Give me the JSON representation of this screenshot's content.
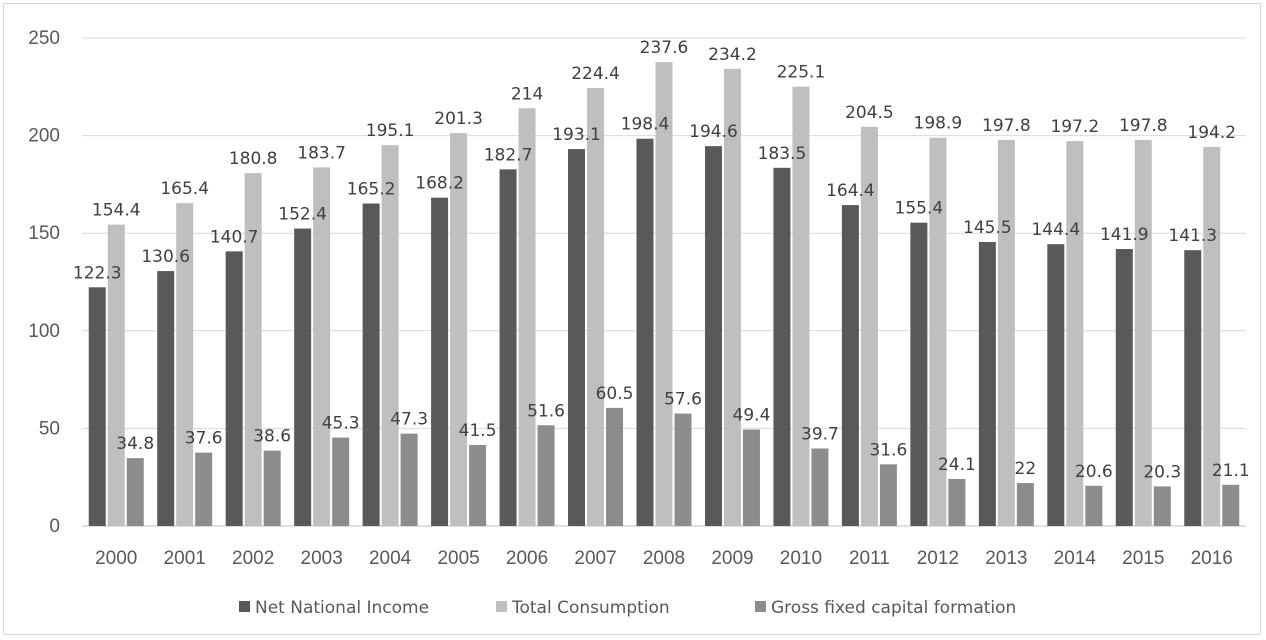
{
  "chart_data": {
    "type": "bar",
    "categories": [
      "2000",
      "2001",
      "2002",
      "2003",
      "2004",
      "2005",
      "2006",
      "2007",
      "2008",
      "2009",
      "2010",
      "2011",
      "2012",
      "2013",
      "2014",
      "2015",
      "2016"
    ],
    "series": [
      {
        "name": "Net National Income",
        "color": "#595959",
        "values": [
          122.3,
          130.6,
          140.7,
          152.4,
          165.2,
          168.2,
          182.7,
          193.1,
          198.4,
          194.6,
          183.5,
          164.4,
          155.4,
          145.5,
          144.4,
          141.9,
          141.3
        ],
        "labels": [
          "122.3",
          "130.6",
          "140.7",
          "152.4",
          "165.2",
          "168.2",
          "182.7",
          "193.1",
          "198.4",
          "194.6",
          "183.5",
          "164.4",
          "155.4",
          "145.5",
          "144.4",
          "141.9",
          "141.3"
        ]
      },
      {
        "name": "Total Consumption",
        "color": "#bfbfbf",
        "values": [
          154.4,
          165.4,
          180.8,
          183.7,
          195.1,
          201.3,
          214,
          224.4,
          237.6,
          234.2,
          225.1,
          204.5,
          198.9,
          197.8,
          197.2,
          197.8,
          194.2
        ],
        "labels": [
          "154.4",
          "165.4",
          "180.8",
          "183.7",
          "195.1",
          "201.3",
          "214",
          "224.4",
          "237.6",
          "234.2",
          "225.1",
          "204.5",
          "198.9",
          "197.8",
          "197.2",
          "197.8",
          "194.2"
        ]
      },
      {
        "name": "Gross fixed capital formation",
        "color": "#8c8c8c",
        "values": [
          34.8,
          37.6,
          38.6,
          45.3,
          47.3,
          41.5,
          51.6,
          60.5,
          57.6,
          49.4,
          39.7,
          31.6,
          24.1,
          22,
          20.6,
          20.3,
          21.1
        ],
        "labels": [
          "34.8",
          "37.6",
          "38.6",
          "45.3",
          "47.3",
          "41.5",
          "51.6",
          "60.5",
          "57.6",
          "49.4",
          "39.7",
          "31.6",
          "24.1",
          "22",
          "20.6",
          "20.3",
          "21.1"
        ]
      }
    ],
    "ylim": [
      0,
      250
    ],
    "yticks": [
      "0",
      "50",
      "100",
      "150",
      "200",
      "250"
    ],
    "grid": true,
    "legend_position": "bottom"
  }
}
